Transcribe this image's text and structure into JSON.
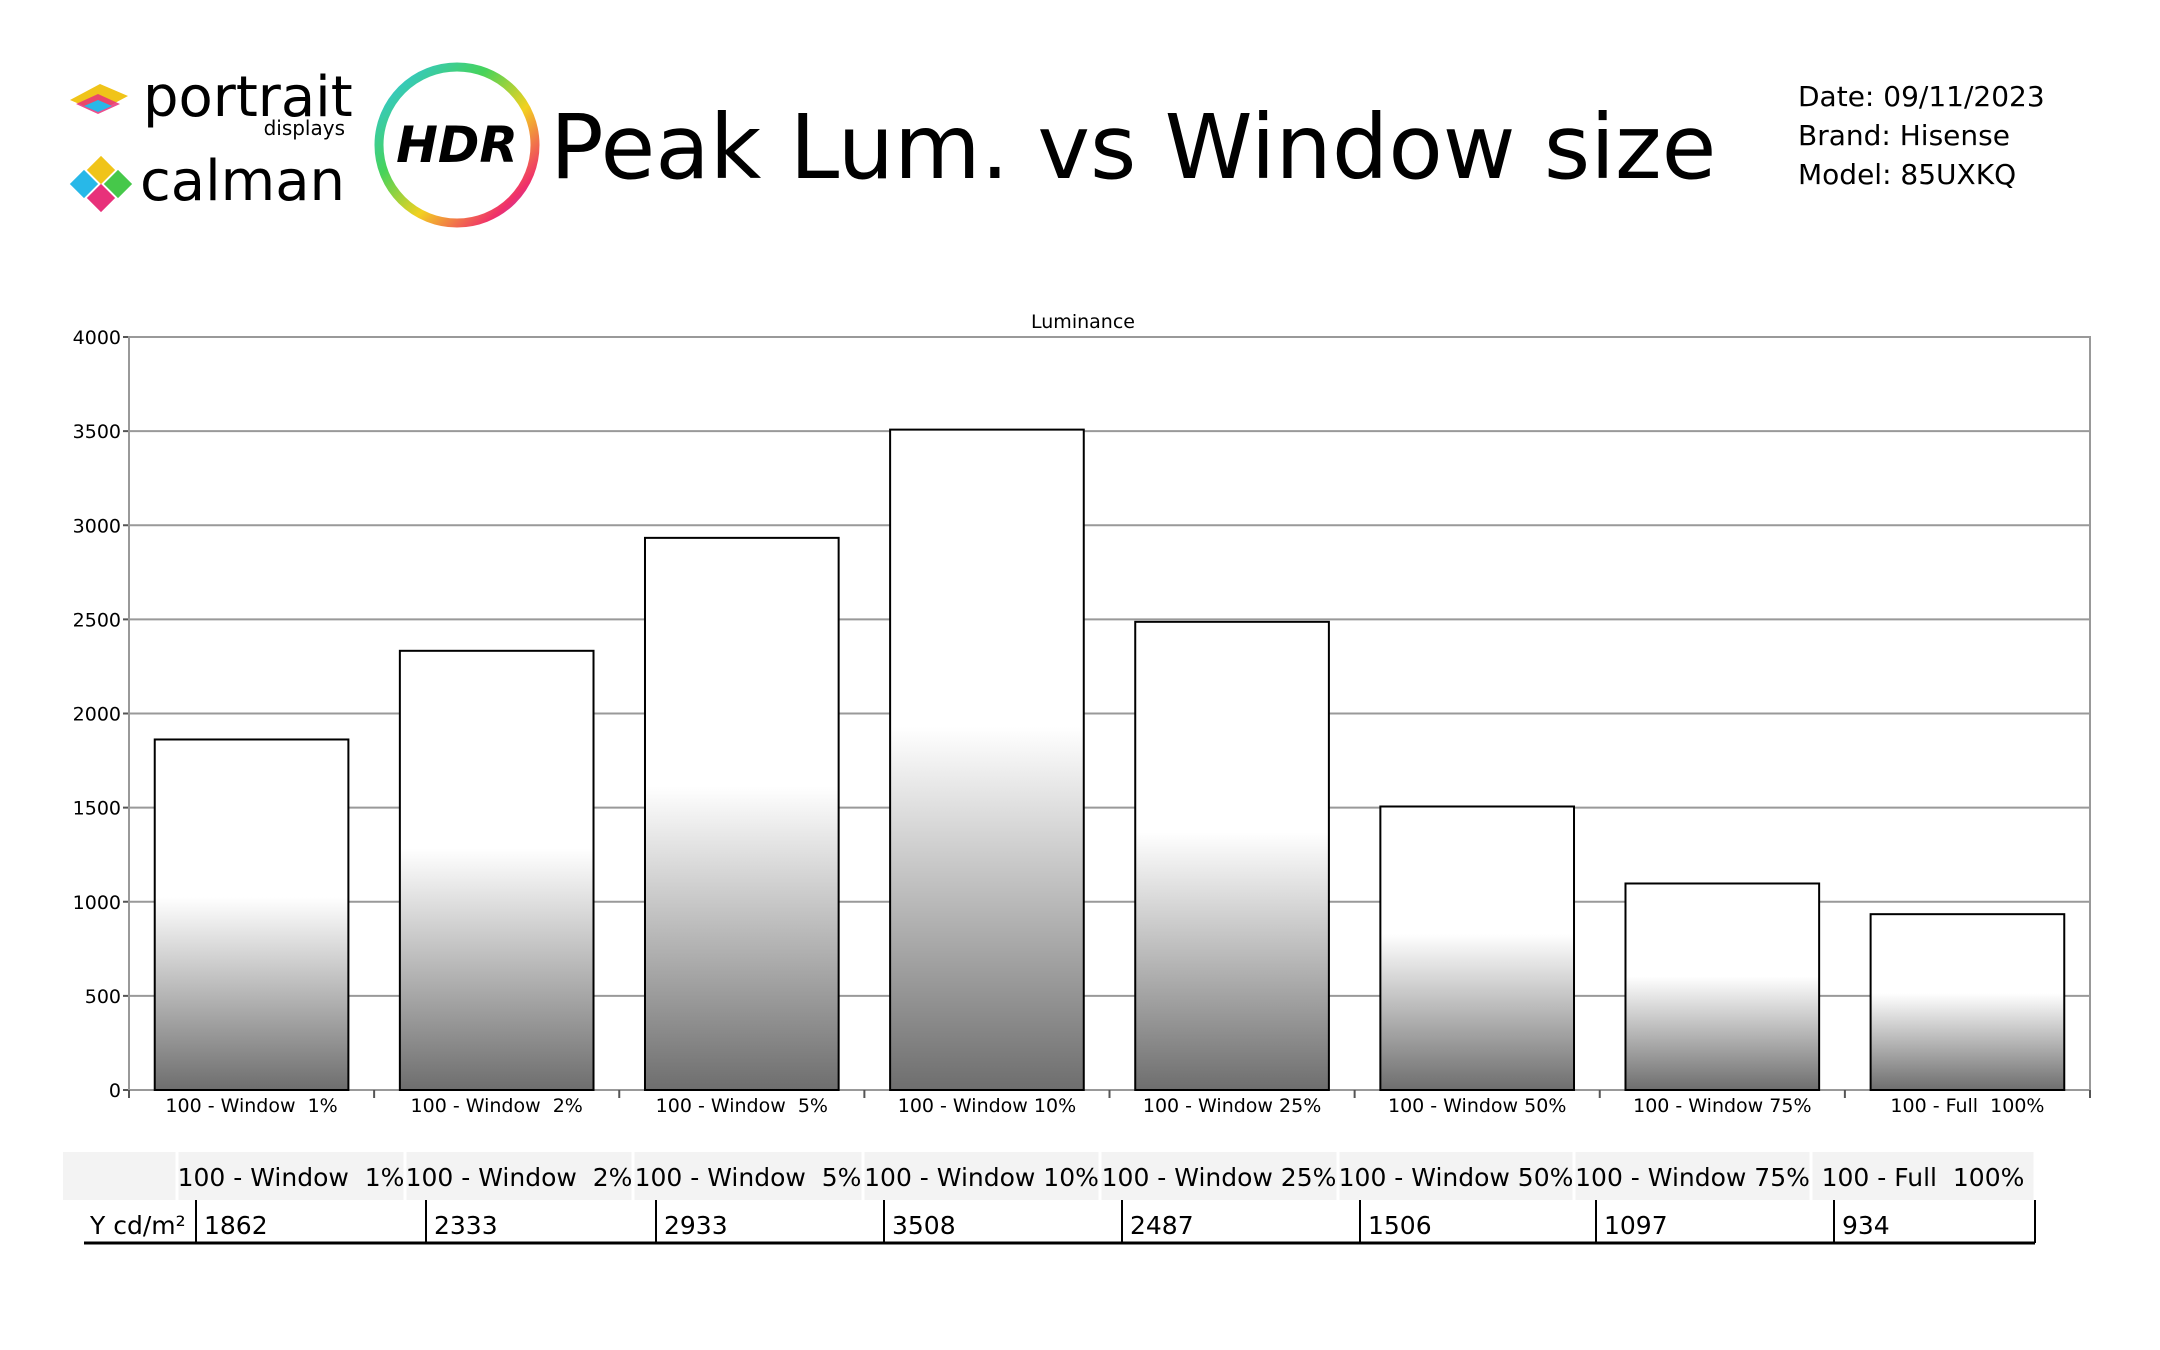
{
  "header": {
    "logo_top": "portrait",
    "logo_sub": "displays",
    "logo_bottom": "calman",
    "badge": "HDR",
    "title": "Peak Lum. vs Window size",
    "date": "Date: 09/11/2023",
    "brand": "Brand: Hisense",
    "model": "Model: 85UXKQ"
  },
  "chart_data": {
    "type": "bar",
    "title": "Luminance",
    "categories": [
      "100 - Window  1%",
      "100 - Window  2%",
      "100 - Window  5%",
      "100 - Window 10%",
      "100 - Window 25%",
      "100 - Window 50%",
      "100 - Window 75%",
      "100 - Full  100%"
    ],
    "values": [
      1862,
      2333,
      2933,
      3508,
      2487,
      1506,
      1097,
      934
    ],
    "color": "#6e6e6e",
    "ylim": [
      0,
      4000
    ],
    "yticks": [
      0,
      500,
      1000,
      1500,
      2000,
      2500,
      3000,
      3500,
      4000
    ],
    "grid": true
  },
  "table": {
    "row_label": "Y cd/m²"
  }
}
